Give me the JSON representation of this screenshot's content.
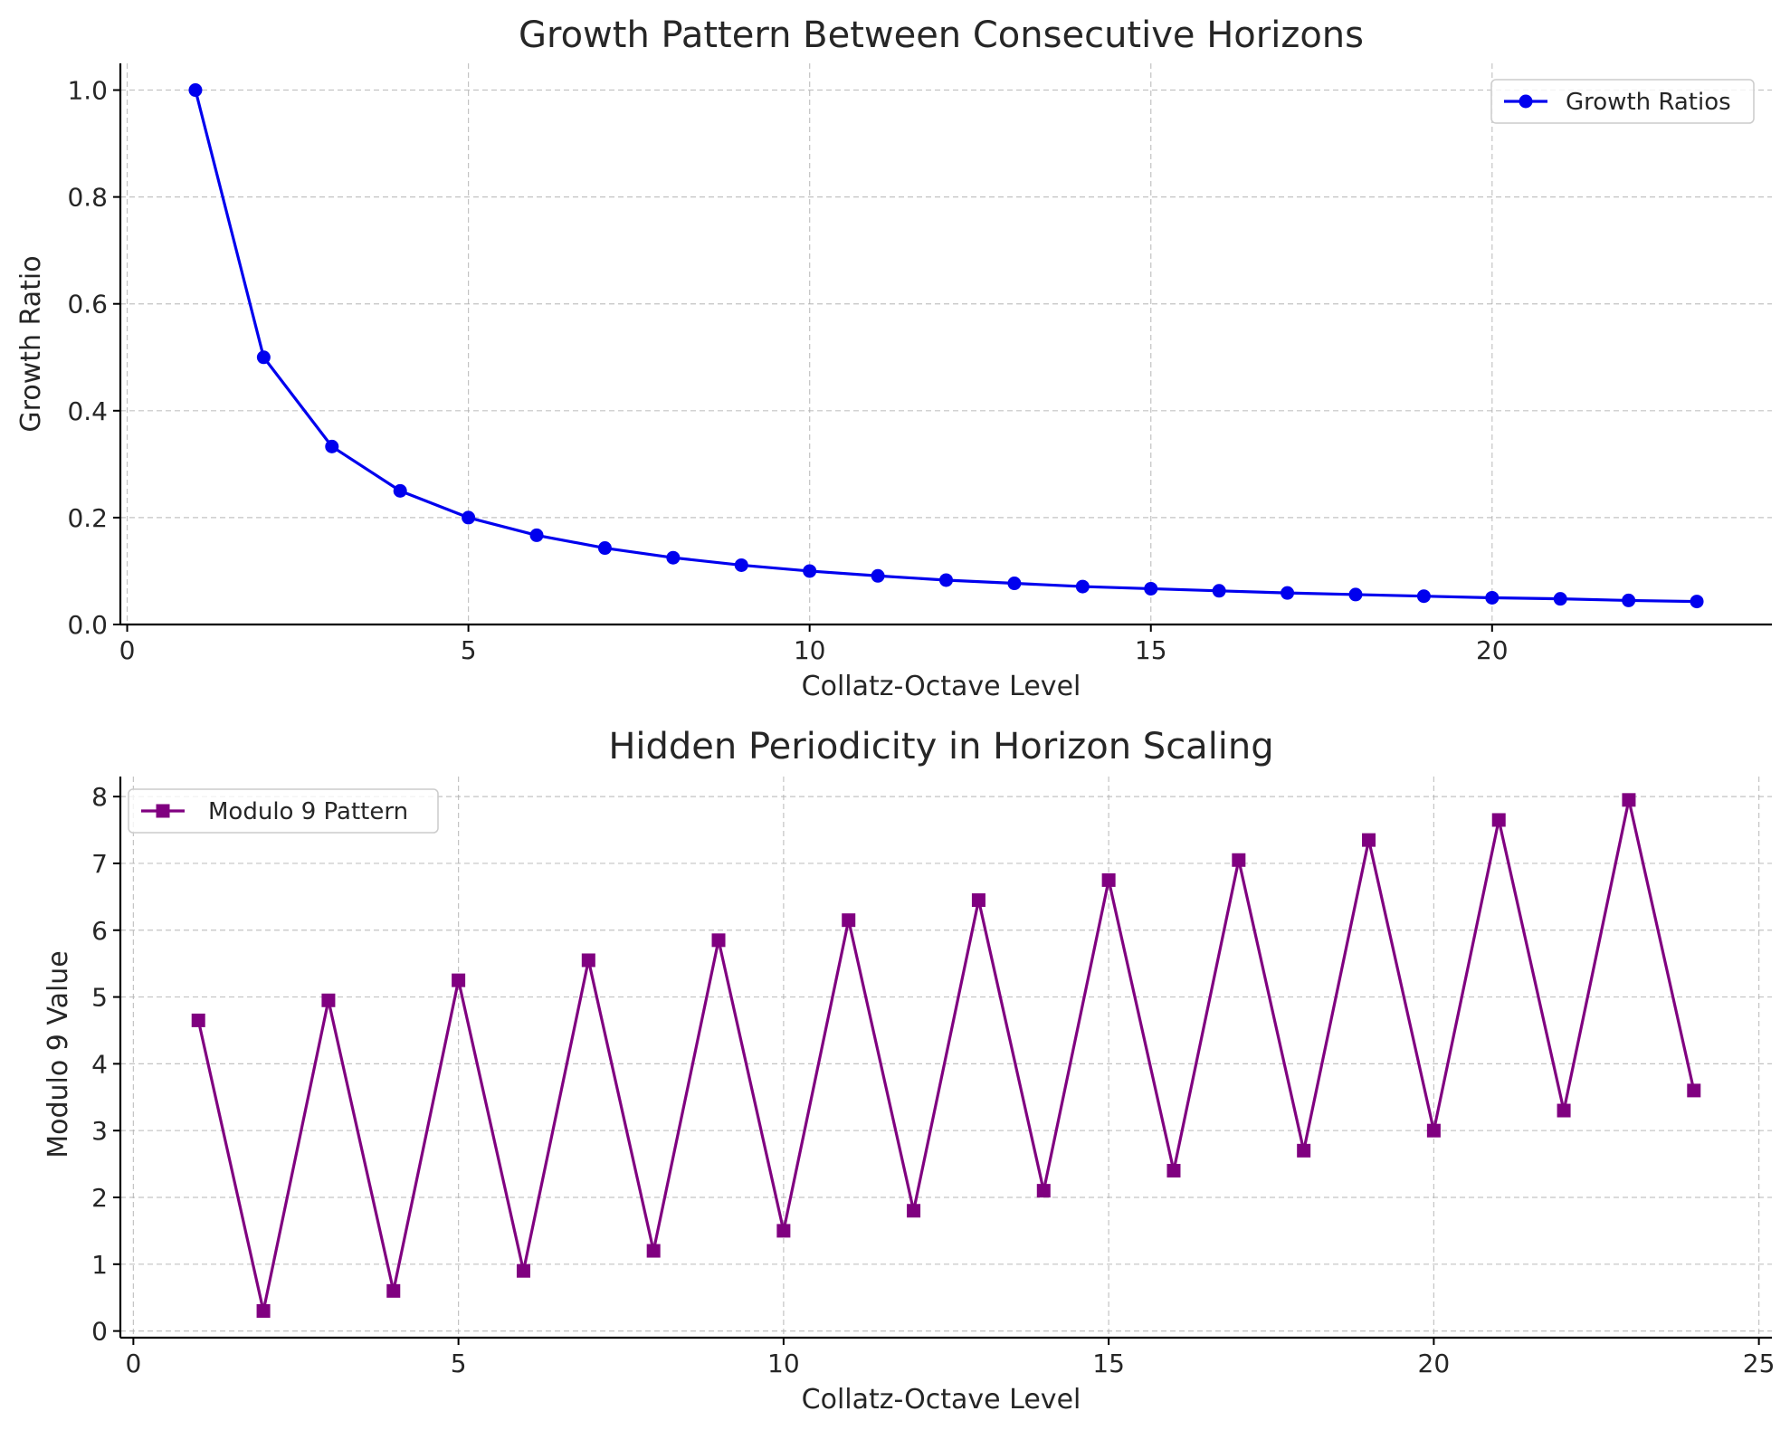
{
  "chart_data": [
    {
      "type": "line",
      "title": "Growth Pattern Between Consecutive Horizons",
      "xlabel": "Collatz-Octave Level",
      "ylabel": "Growth Ratio",
      "xlim": [
        -0.1,
        24.1
      ],
      "ylim": [
        0.0,
        1.05
      ],
      "xticks": [
        0,
        5,
        10,
        15,
        20
      ],
      "xtick_labels": [
        "0",
        "5",
        "10",
        "15",
        "20"
      ],
      "yticks": [
        0.0,
        0.2,
        0.4,
        0.6,
        0.8,
        1.0
      ],
      "ytick_labels": [
        "0.0",
        "0.2",
        "0.4",
        "0.6",
        "0.8",
        "1.0"
      ],
      "grid": true,
      "legend_position": "top-right",
      "series": [
        {
          "name": "Growth Ratios",
          "color": "#0000ee",
          "marker": "circle",
          "x": [
            1,
            2,
            3,
            4,
            5,
            6,
            7,
            8,
            9,
            10,
            11,
            12,
            13,
            14,
            15,
            16,
            17,
            18,
            19,
            20,
            21,
            22,
            23
          ],
          "values": [
            1.0,
            0.5,
            0.333,
            0.25,
            0.2,
            0.167,
            0.143,
            0.125,
            0.111,
            0.1,
            0.091,
            0.083,
            0.077,
            0.071,
            0.067,
            0.063,
            0.059,
            0.056,
            0.053,
            0.05,
            0.048,
            0.045,
            0.043
          ]
        }
      ]
    },
    {
      "type": "line",
      "title": "Hidden Periodicity in Horizon Scaling",
      "xlabel": "Collatz-Octave Level",
      "ylabel": "Modulo 9 Value",
      "xlim": [
        -0.2,
        25.2
      ],
      "ylim": [
        -0.1,
        8.3
      ],
      "xticks": [
        0,
        5,
        10,
        15,
        20,
        25
      ],
      "xtick_labels": [
        "0",
        "5",
        "10",
        "15",
        "20",
        "25"
      ],
      "yticks": [
        0,
        1,
        2,
        3,
        4,
        5,
        6,
        7,
        8
      ],
      "ytick_labels": [
        "0",
        "1",
        "2",
        "3",
        "4",
        "5",
        "6",
        "7",
        "8"
      ],
      "grid": true,
      "legend_position": "top-left",
      "series": [
        {
          "name": "Modulo 9 Pattern",
          "color": "#800080",
          "marker": "square",
          "x": [
            1,
            2,
            3,
            4,
            5,
            6,
            7,
            8,
            9,
            10,
            11,
            12,
            13,
            14,
            15,
            16,
            17,
            18,
            19,
            20,
            21,
            22,
            23,
            24
          ],
          "values": [
            4.65,
            0.3,
            4.95,
            0.6,
            5.25,
            0.9,
            5.55,
            1.2,
            5.85,
            1.5,
            6.15,
            1.8,
            6.45,
            2.1,
            6.75,
            2.4,
            7.05,
            2.7,
            7.35,
            3.0,
            7.65,
            3.3,
            7.95,
            3.6
          ]
        }
      ]
    }
  ]
}
